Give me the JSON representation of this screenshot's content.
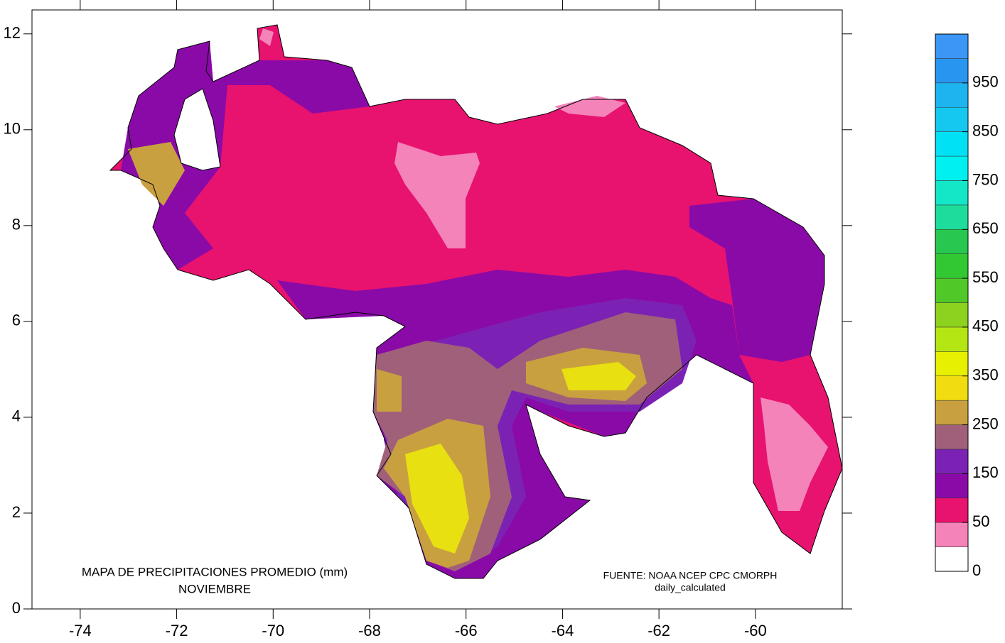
{
  "map": {
    "title": [
      "MAPA DE PRECIPITACIONES PROMEDIO (mm)",
      "NOVIEMBRE"
    ],
    "source": [
      "FUENTE: NOAA NCEP CPC CMORPH",
      "daily_calculated"
    ],
    "xlim": [
      -75,
      -58.2
    ],
    "ylim": [
      0,
      12.5
    ],
    "xticks": [
      -74,
      -72,
      -70,
      -68,
      -66,
      -64,
      -62,
      -60
    ],
    "yticks": [
      0,
      2,
      4,
      6,
      8,
      10,
      12
    ],
    "colorbar": {
      "levels": [
        0,
        25,
        50,
        100,
        150,
        200,
        250,
        300,
        350,
        400,
        450,
        500,
        550,
        600,
        650,
        700,
        750,
        800,
        850,
        900,
        950,
        1000,
        1050
      ],
      "colors": [
        "#ffffff",
        "#f383b8",
        "#e8126f",
        "#8a0aa8",
        "#7b22b5",
        "#a0607a",
        "#c8a040",
        "#f0dc10",
        "#e6f000",
        "#b4e614",
        "#8cd21e",
        "#50c828",
        "#32c832",
        "#28c850",
        "#1edc9b",
        "#14e6c8",
        "#00f0f0",
        "#00e1f5",
        "#14c8f0",
        "#1eb4f0",
        "#2896f0",
        "#3c96f5"
      ],
      "ticks": [
        0,
        50,
        150,
        250,
        350,
        450,
        550,
        650,
        750,
        850,
        950
      ]
    }
  }
}
